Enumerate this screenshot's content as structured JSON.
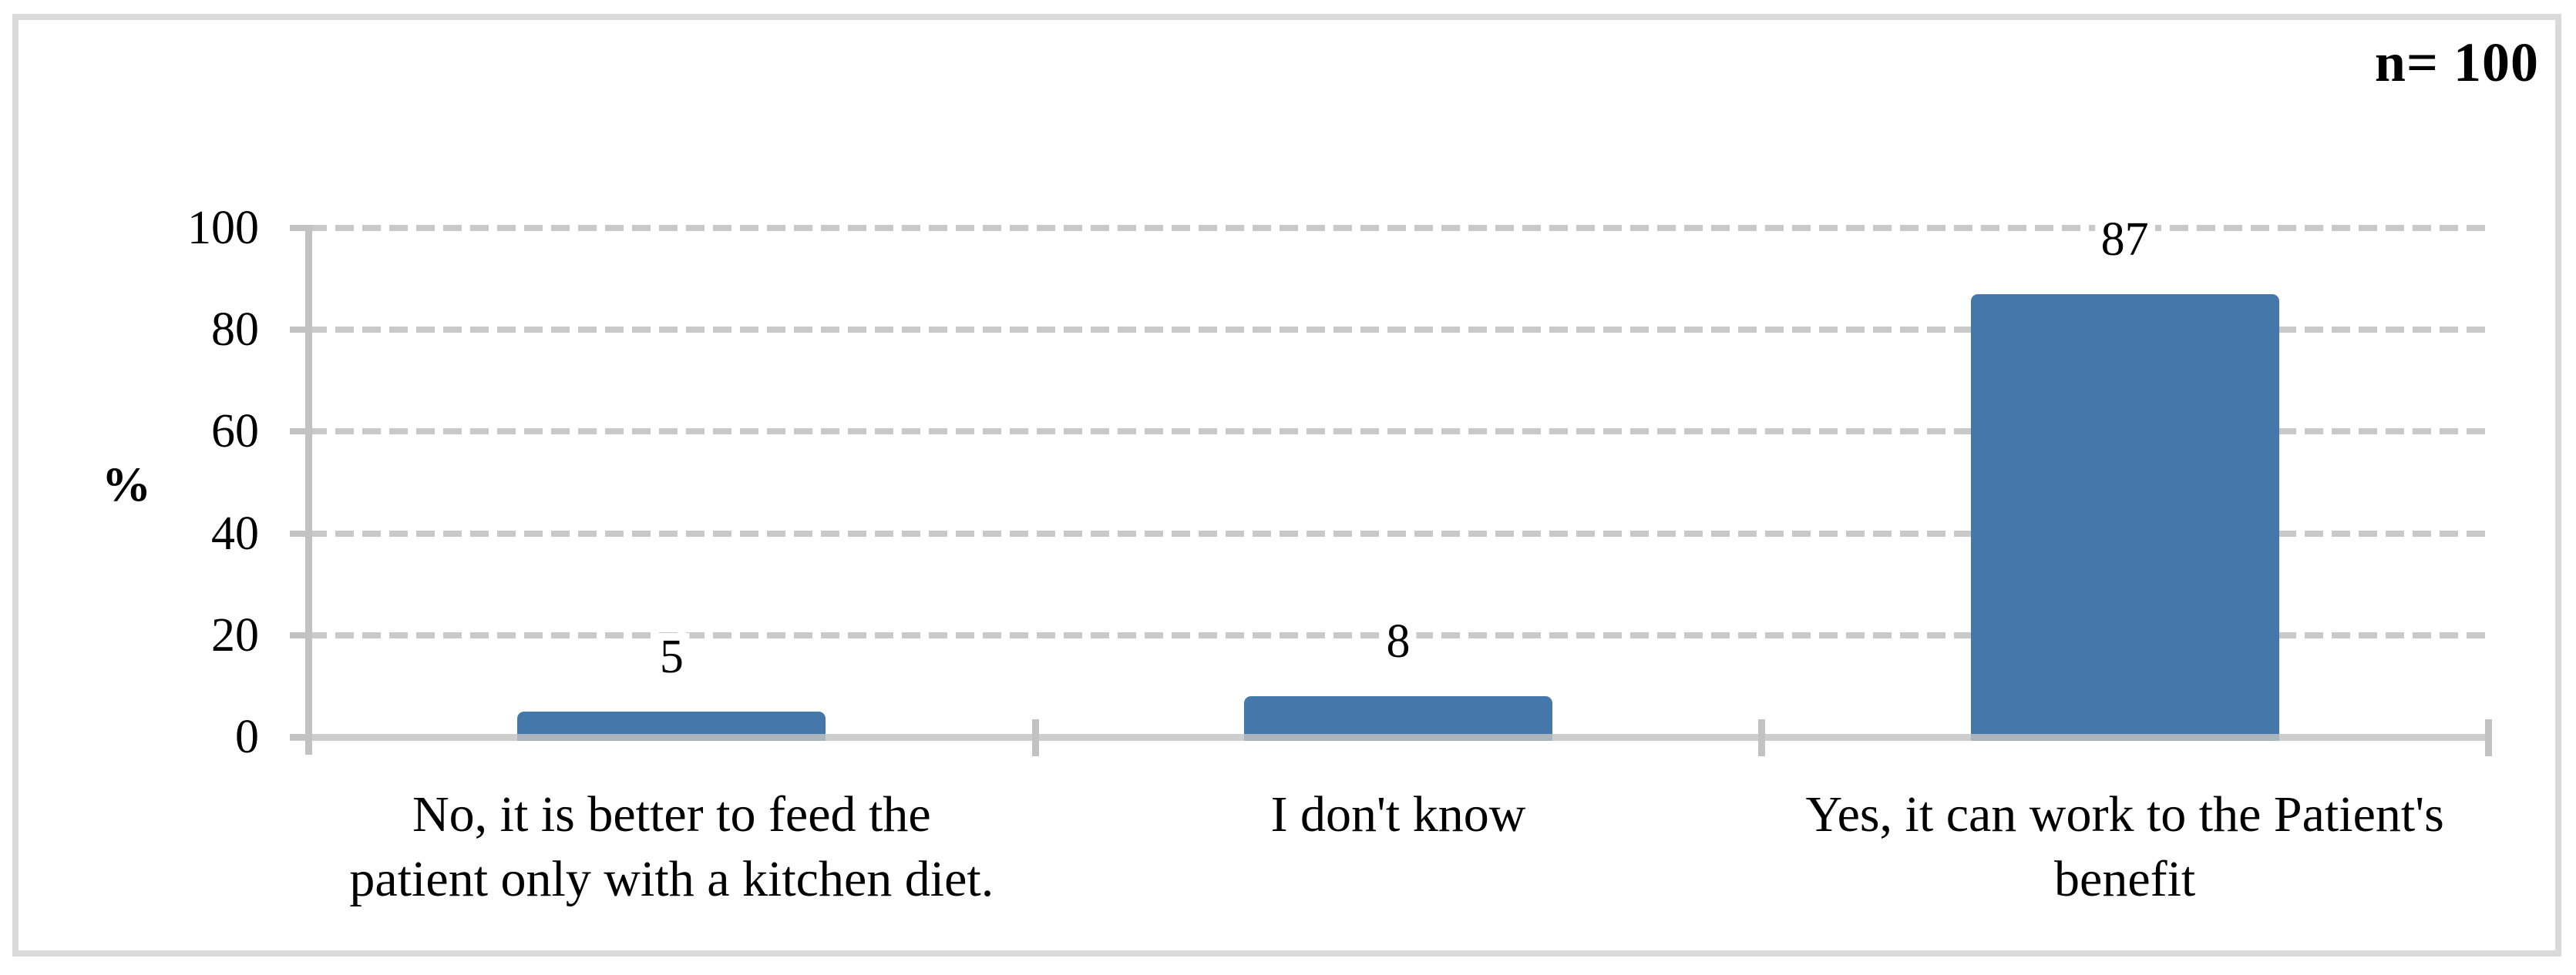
{
  "figure": {
    "sample_size_label": "n= 100",
    "background": "#ffffff",
    "frame_color": "#dadada"
  },
  "y_axis": {
    "title": "%",
    "ticks": [
      0,
      20,
      40,
      60,
      80,
      100
    ]
  },
  "chart_data": {
    "type": "bar",
    "title": "",
    "xlabel": "",
    "ylabel": "%",
    "ylim": [
      0,
      100
    ],
    "grid": "horizontal-dashed",
    "legend": "none",
    "categories": [
      "No, it is better to feed the patient only with a kitchen diet.",
      "I don't know",
      "Yes, it can work to the Patient's benefit"
    ],
    "categories_wrapped": [
      [
        "No, it is better to feed the",
        "patient only with a kitchen diet."
      ],
      [
        "I don't know"
      ],
      [
        "Yes, it can work to the Patient's",
        "benefit"
      ]
    ],
    "values": [
      5,
      8,
      87
    ],
    "data_labels": [
      "5",
      "8",
      "87"
    ],
    "annotation": "n= 100"
  },
  "colors": {
    "bar": "#4478ab",
    "axis": "#c2c2c2",
    "grid": "#c9c9c9",
    "frame": "#dadada",
    "text": "#000000"
  }
}
